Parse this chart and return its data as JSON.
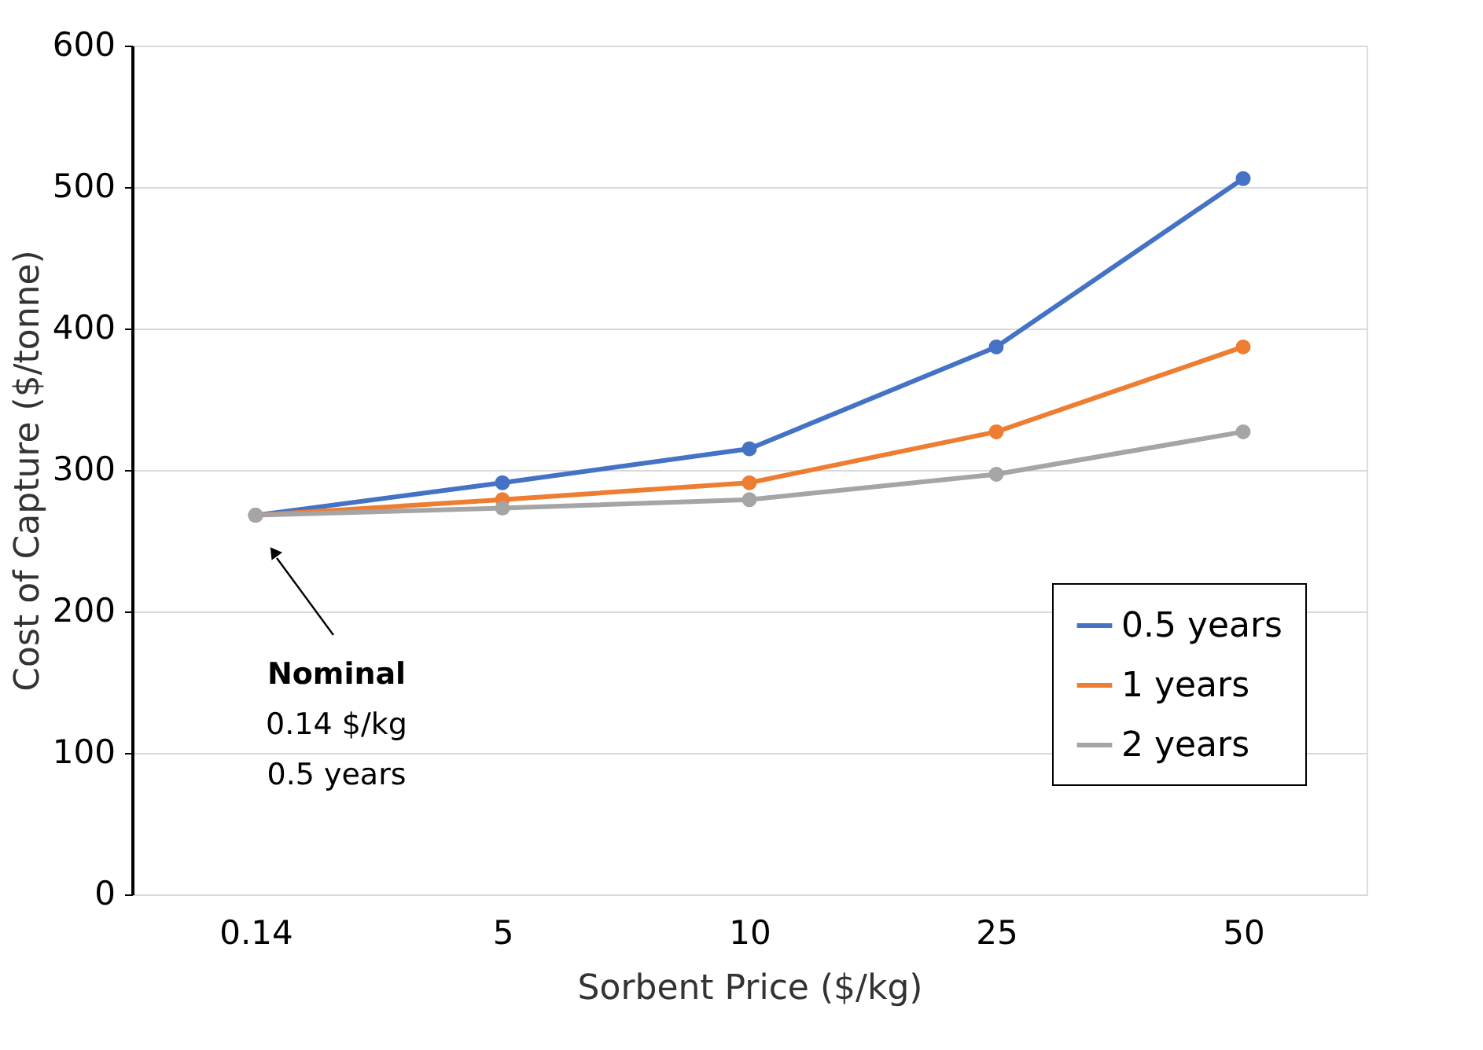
{
  "chart_data": {
    "type": "line",
    "xlabel": "Sorbent Price ($/kg)",
    "ylabel": "Cost of Capture ($/tonne)",
    "categories": [
      "0.14",
      "5",
      "10",
      "25",
      "50"
    ],
    "series": [
      {
        "name": "0.5 years",
        "color": "#4472c4",
        "values": [
          268,
          291,
          315,
          387,
          506
        ]
      },
      {
        "name": "1 years",
        "color": "#ed7d31",
        "values": [
          268,
          279,
          291,
          327,
          387
        ]
      },
      {
        "name": "2 years",
        "color": "#a5a5a5",
        "values": [
          268,
          273,
          279,
          297,
          327
        ]
      }
    ],
    "ylim": [
      0,
      600
    ],
    "yticks": [
      0,
      100,
      200,
      300,
      400,
      500,
      600
    ],
    "grid": "y",
    "legend": "bottom right",
    "marker": "circle",
    "line_style": "solid",
    "annotations": [
      "Nominal",
      "0.14 $/kg",
      "0.5 years"
    ]
  }
}
